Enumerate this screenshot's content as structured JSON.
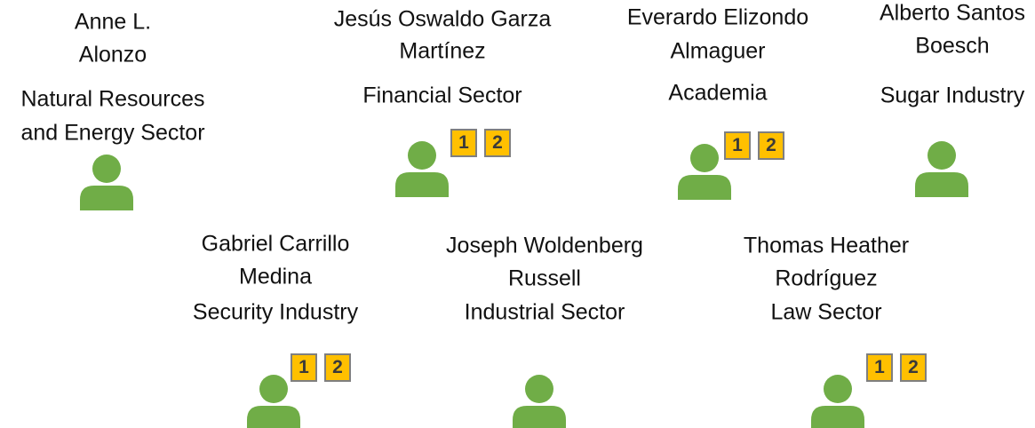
{
  "people": [
    {
      "name": [
        "Anne L.",
        "Alonzo"
      ],
      "sector": [
        "Natural Resources",
        "and Energy Sector"
      ],
      "badges": []
    },
    {
      "name": [
        "Jesús Oswaldo Garza",
        "Martínez"
      ],
      "sector": [
        "Financial Sector"
      ],
      "badges": [
        "1",
        "2"
      ]
    },
    {
      "name": [
        "Everardo Elizondo",
        "Almaguer"
      ],
      "sector": [
        "Academia"
      ],
      "badges": [
        "1",
        "2"
      ]
    },
    {
      "name": [
        "Alberto Santos",
        "Boesch"
      ],
      "sector": [
        "Sugar Industry"
      ],
      "badges": []
    },
    {
      "name": [
        "Gabriel Carrillo",
        "Medina"
      ],
      "sector": [
        "Security Industry"
      ],
      "badges": [
        "1",
        "2"
      ]
    },
    {
      "name": [
        "Joseph Woldenberg",
        "Russell"
      ],
      "sector": [
        "Industrial Sector"
      ],
      "badges": []
    },
    {
      "name": [
        "Thomas Heather",
        "Rodríguez"
      ],
      "sector": [
        "Law Sector"
      ],
      "badges": [
        "1",
        "2"
      ]
    }
  ]
}
